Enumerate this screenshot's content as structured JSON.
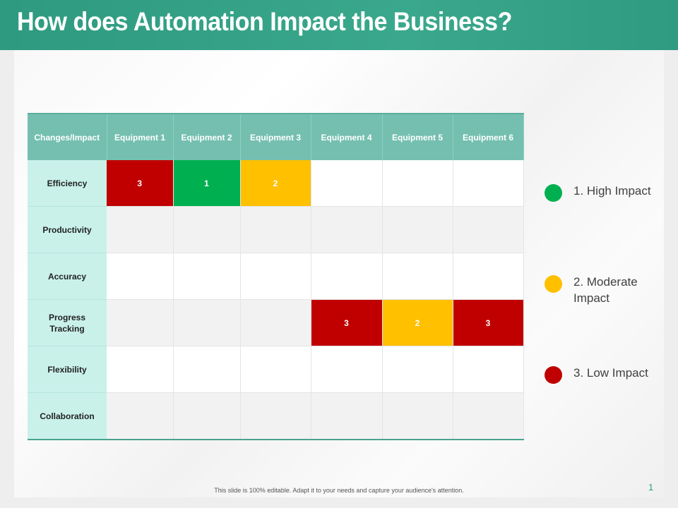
{
  "title": "How does Automation Impact the Business?",
  "table": {
    "corner": "Changes/Impact",
    "columns": [
      "Equipment 1",
      "Equipment 2",
      "Equipment 3",
      "Equipment 4",
      "Equipment 5",
      "Equipment 6"
    ],
    "rows": [
      {
        "label": "Efficiency",
        "cells": [
          "3",
          "1",
          "2",
          "",
          "",
          ""
        ]
      },
      {
        "label": "Productivity",
        "cells": [
          "",
          "",
          "",
          "",
          "",
          ""
        ]
      },
      {
        "label": "Accuracy",
        "cells": [
          "",
          "",
          "",
          "",
          "",
          ""
        ]
      },
      {
        "label": "Progress Tracking",
        "cells": [
          "",
          "",
          "",
          "3",
          "2",
          "3"
        ]
      },
      {
        "label": "Flexibility",
        "cells": [
          "",
          "",
          "",
          "",
          "",
          ""
        ]
      },
      {
        "label": "Collaboration",
        "cells": [
          "",
          "",
          "",
          "",
          "",
          ""
        ]
      }
    ]
  },
  "legend": [
    {
      "label": "1.  High Impact",
      "color": "#00b050"
    },
    {
      "label": "2.  Moderate Impact",
      "color": "#ffc000"
    },
    {
      "label": "3.  Low Impact",
      "color": "#c00000"
    }
  ],
  "footer": "This slide is 100% editable. Adapt it to your needs and capture your audience's attention.",
  "page_number": "1"
}
